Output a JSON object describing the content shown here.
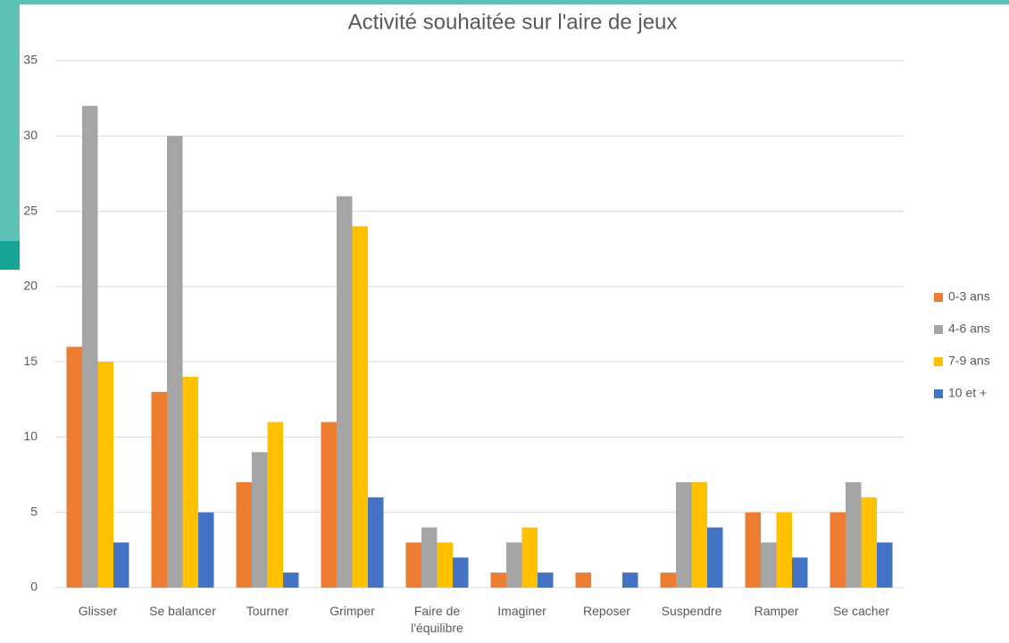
{
  "chart_data": {
    "type": "bar",
    "title": "Activité souhaitée sur l'aire de jeux",
    "categories": [
      "Glisser",
      "Se balancer",
      "Tourner",
      "Grimper",
      "Faire de l'équilibre",
      "Imaginer",
      "Reposer",
      "Suspendre",
      "Ramper",
      "Se cacher"
    ],
    "series": [
      {
        "name": "0-3 ans",
        "color": "#ed7d31",
        "values": [
          16,
          13,
          7,
          11,
          3,
          1,
          1,
          1,
          5,
          5
        ]
      },
      {
        "name": "4-6 ans",
        "color": "#a5a5a5",
        "values": [
          32,
          30,
          9,
          26,
          4,
          3,
          0,
          7,
          3,
          7
        ]
      },
      {
        "name": "7-9 ans",
        "color": "#ffc000",
        "values": [
          15,
          14,
          11,
          24,
          3,
          4,
          0,
          7,
          5,
          6
        ]
      },
      {
        "name": "10 et +",
        "color": "#4472c4",
        "values": [
          3,
          5,
          1,
          6,
          2,
          1,
          1,
          4,
          2,
          3
        ]
      }
    ],
    "ylim": [
      0,
      35
    ],
    "yticks": [
      0,
      5,
      10,
      15,
      20,
      25,
      30,
      35
    ],
    "grid": true,
    "legend": "right"
  }
}
